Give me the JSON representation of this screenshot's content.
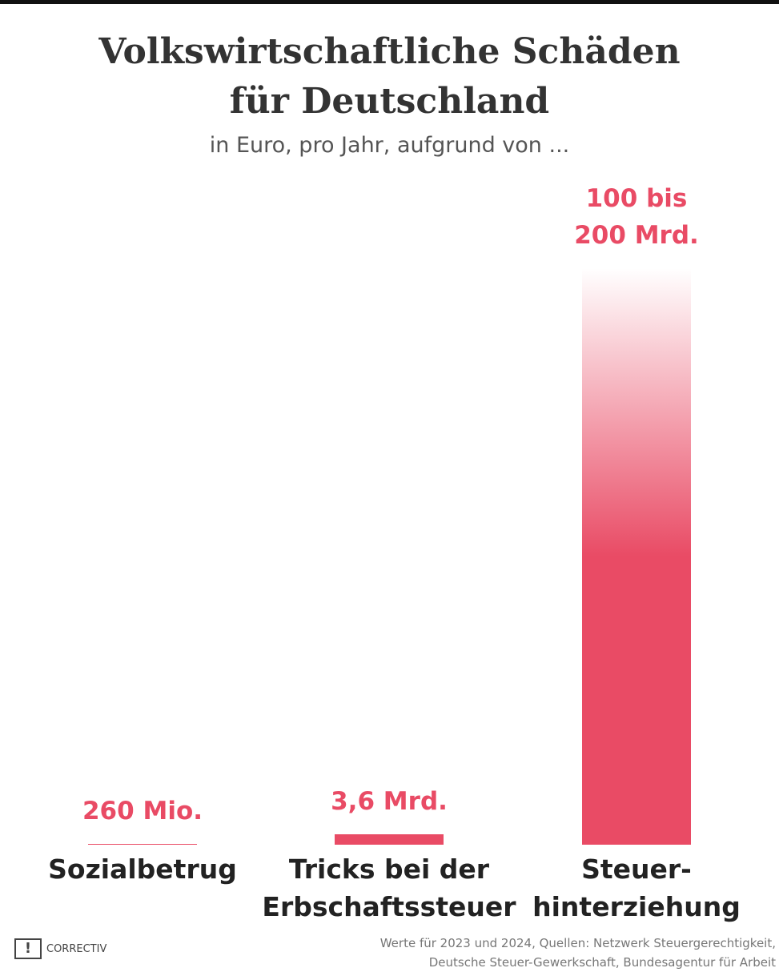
{
  "chart_data": {
    "type": "bar",
    "title": "Volkswirtschaftliche Schäden\nfür Deutschland",
    "subtitle": "in Euro, pro Jahr, aufgrund von ...",
    "categories": [
      "Sozialbetrug",
      "Tricks bei der\nErbschaftssteuer",
      "Steuer-\nhinterziehung"
    ],
    "values": [
      260000000,
      3600000000,
      200000000000
    ],
    "range_low": [
      null,
      null,
      100000000000
    ],
    "value_labels": [
      "260 Mio.",
      "3,6 Mrd.",
      "100 bis\n200 Mrd."
    ],
    "color": "#e94b65",
    "source": "Werte für 2023 und 2024, Quellen: Netzwerk Steuergerechtigkeit,\nDeutsche Steuer-Gewerkschaft, Bundesagentur für Arbeit",
    "logo": "CORRECTIV"
  }
}
